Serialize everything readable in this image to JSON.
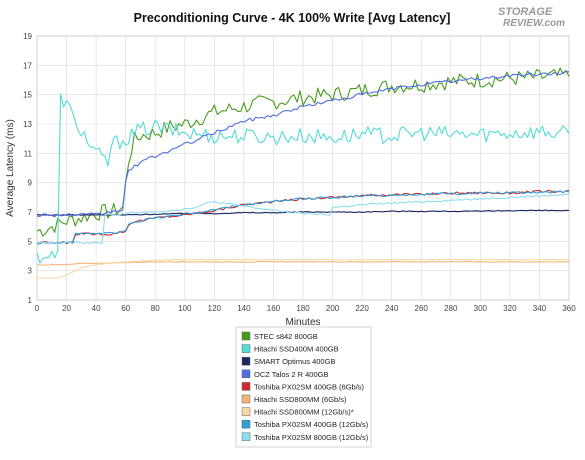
{
  "logo": {
    "line1": "STORAGE",
    "line2": "REVIEW.com",
    "color": "#9a9a9a"
  },
  "chart_data": {
    "type": "line",
    "title": "Preconditioning Curve - 4K 100% Write [Avg Latency]",
    "xlabel": "Minutes",
    "ylabel": "Average Latency (ms)",
    "xlim": [
      0,
      360
    ],
    "ylim": [
      1,
      19
    ],
    "xticks": [
      0,
      20,
      40,
      60,
      80,
      100,
      120,
      140,
      160,
      180,
      200,
      220,
      240,
      260,
      280,
      300,
      320,
      340,
      360
    ],
    "yticks": [
      1,
      3,
      5,
      7,
      9,
      11,
      13,
      15,
      17,
      19
    ],
    "grid": true,
    "legend_position": "bottom",
    "series": [
      {
        "name": "STEC s842 800GB",
        "color": "#4a9a1e",
        "x": [
          0,
          5,
          10,
          15,
          20,
          25,
          30,
          35,
          40,
          45,
          50,
          55,
          58,
          60,
          62,
          65,
          70,
          80,
          90,
          100,
          110,
          120,
          130,
          140,
          150,
          160,
          180,
          200,
          220,
          240,
          260,
          280,
          300,
          320,
          340,
          360
        ],
        "y": [
          5.7,
          5.8,
          6.0,
          6.2,
          6.4,
          6.5,
          6.6,
          6.8,
          6.9,
          7.0,
          7.0,
          7.2,
          7.3,
          8.9,
          10.5,
          11.8,
          12.2,
          12.4,
          12.8,
          13.0,
          13.4,
          13.8,
          14.0,
          14.2,
          14.4,
          14.5,
          14.8,
          15.0,
          15.3,
          15.6,
          15.7,
          15.9,
          16.0,
          16.1,
          16.2,
          16.3
        ],
        "noise": 0.55
      },
      {
        "name": "Hitachi SSD400M 400GB",
        "color": "#52dcd6",
        "x": [
          0,
          10,
          14,
          15,
          17,
          19,
          22,
          25,
          30,
          35,
          40,
          45,
          48,
          50,
          55,
          60,
          65,
          70,
          80,
          90,
          100,
          110,
          120,
          140,
          160,
          180,
          200,
          220,
          240,
          260,
          280,
          300,
          320,
          340,
          360
        ],
        "y": [
          4.0,
          4.0,
          4.0,
          14.6,
          14.8,
          14.5,
          14.0,
          13.2,
          12.6,
          11.7,
          11.0,
          10.6,
          10.3,
          11.5,
          11.8,
          12.0,
          12.3,
          12.6,
          12.8,
          12.6,
          12.4,
          12.3,
          12.2,
          12.2,
          12.1,
          12.2,
          12.1,
          12.3,
          12.2,
          12.4,
          12.3,
          12.3,
          12.4,
          12.5,
          12.3
        ],
        "noise": 0.55
      },
      {
        "name": "SMART Optimus 400GB",
        "color": "#1a2760",
        "x": [
          0,
          20,
          40,
          60,
          80,
          100,
          120,
          140,
          160,
          180,
          200,
          220,
          240,
          260,
          280,
          300,
          320,
          340,
          360
        ],
        "y": [
          6.8,
          6.8,
          6.8,
          6.8,
          6.85,
          6.9,
          6.9,
          6.95,
          6.95,
          7.0,
          7.0,
          7.0,
          7.05,
          7.05,
          7.05,
          7.05,
          7.1,
          7.1,
          7.1
        ],
        "noise": 0.03
      },
      {
        "name": "OCZ Talos 2 R 400GB",
        "color": "#4f6ee6",
        "x": [
          0,
          20,
          40,
          45,
          50,
          55,
          58,
          60,
          62,
          70,
          80,
          90,
          100,
          110,
          120,
          130,
          140,
          150,
          160,
          180,
          200,
          220,
          240,
          260,
          280,
          300,
          320,
          340,
          360
        ],
        "y": [
          6.8,
          6.8,
          6.8,
          6.9,
          7.0,
          7.1,
          7.2,
          9.0,
          9.8,
          10.4,
          10.8,
          11.2,
          11.6,
          12.0,
          12.4,
          12.8,
          13.2,
          13.4,
          13.6,
          14.2,
          14.6,
          15.0,
          15.4,
          15.7,
          15.9,
          16.1,
          16.3,
          16.4,
          16.5
        ],
        "noise": 0.12
      },
      {
        "name": "Toshiba PX02SM 400GB (6Gb/s)",
        "color": "#cc2b2b",
        "x": [
          0,
          10,
          20,
          25,
          26,
          30,
          40,
          50,
          55,
          60,
          63,
          70,
          80,
          100,
          120,
          140,
          160,
          180,
          200,
          220,
          240,
          260,
          280,
          300,
          320,
          340,
          360
        ],
        "y": [
          4.9,
          4.9,
          4.9,
          4.9,
          5.5,
          5.5,
          5.5,
          5.5,
          5.6,
          5.7,
          6.3,
          6.4,
          6.6,
          6.8,
          7.1,
          7.5,
          7.7,
          7.9,
          8.0,
          8.1,
          8.2,
          8.2,
          8.3,
          8.3,
          8.3,
          8.4,
          8.4
        ],
        "noise": 0.08
      },
      {
        "name": "Hitachi SSD800MM (6Gb/s)",
        "color": "#f2b679",
        "x": [
          0,
          10,
          20,
          30,
          40,
          60,
          80,
          100,
          120,
          140,
          160,
          180,
          200,
          220,
          240,
          260,
          280,
          300,
          320,
          340,
          360
        ],
        "y": [
          3.4,
          3.4,
          3.4,
          3.5,
          3.5,
          3.55,
          3.6,
          3.6,
          3.6,
          3.6,
          3.6,
          3.6,
          3.6,
          3.6,
          3.6,
          3.6,
          3.6,
          3.6,
          3.6,
          3.6,
          3.6
        ],
        "noise": 0.02
      },
      {
        "name": "Hitachi SSD800MM (12Gb/s)*",
        "color": "#f8d9a3",
        "x": [
          0,
          10,
          14,
          18,
          22,
          26,
          30,
          35,
          40,
          50,
          60,
          70,
          80,
          100,
          120,
          140,
          160,
          180,
          200,
          220,
          240,
          260,
          280,
          300,
          320,
          340,
          360
        ],
        "y": [
          2.5,
          2.5,
          2.5,
          2.6,
          2.8,
          3.0,
          3.2,
          3.3,
          3.4,
          3.5,
          3.6,
          3.65,
          3.7,
          3.75,
          3.75,
          3.75,
          3.75,
          3.75,
          3.75,
          3.75,
          3.75,
          3.75,
          3.75,
          3.75,
          3.75,
          3.75,
          3.75
        ],
        "noise": 0.02
      },
      {
        "name": "Toshiba PX02SM 400GB (12Gb/s)",
        "color": "#2f9fd8",
        "x": [
          0,
          10,
          20,
          25,
          26,
          30,
          40,
          50,
          55,
          60,
          63,
          70,
          80,
          100,
          120,
          140,
          160,
          180,
          200,
          220,
          240,
          260,
          280,
          300,
          320,
          340,
          360
        ],
        "y": [
          4.9,
          4.9,
          4.9,
          4.9,
          5.55,
          5.55,
          5.55,
          5.55,
          5.6,
          5.7,
          6.3,
          6.4,
          6.6,
          6.85,
          7.15,
          7.5,
          7.7,
          7.9,
          8.0,
          8.1,
          8.15,
          8.2,
          8.25,
          8.3,
          8.3,
          8.35,
          8.4
        ],
        "noise": 0.08
      },
      {
        "name": "Toshiba PX02SM 800GB (12Gb/s)",
        "color": "#8fdcf2",
        "x": [
          0,
          10,
          20,
          30,
          40,
          45,
          46,
          50,
          60,
          80,
          100,
          110,
          115,
          120,
          140,
          160,
          180,
          199,
          200,
          220,
          240,
          260,
          280,
          300,
          320,
          340,
          360
        ],
        "y": [
          4.9,
          4.9,
          4.9,
          4.9,
          4.9,
          4.9,
          6.8,
          6.8,
          6.9,
          7.0,
          7.2,
          7.4,
          7.6,
          7.7,
          7.4,
          7.1,
          6.9,
          6.8,
          7.3,
          7.5,
          7.6,
          7.7,
          7.8,
          7.9,
          8.0,
          8.1,
          8.2
        ],
        "noise": 0.06
      }
    ]
  }
}
